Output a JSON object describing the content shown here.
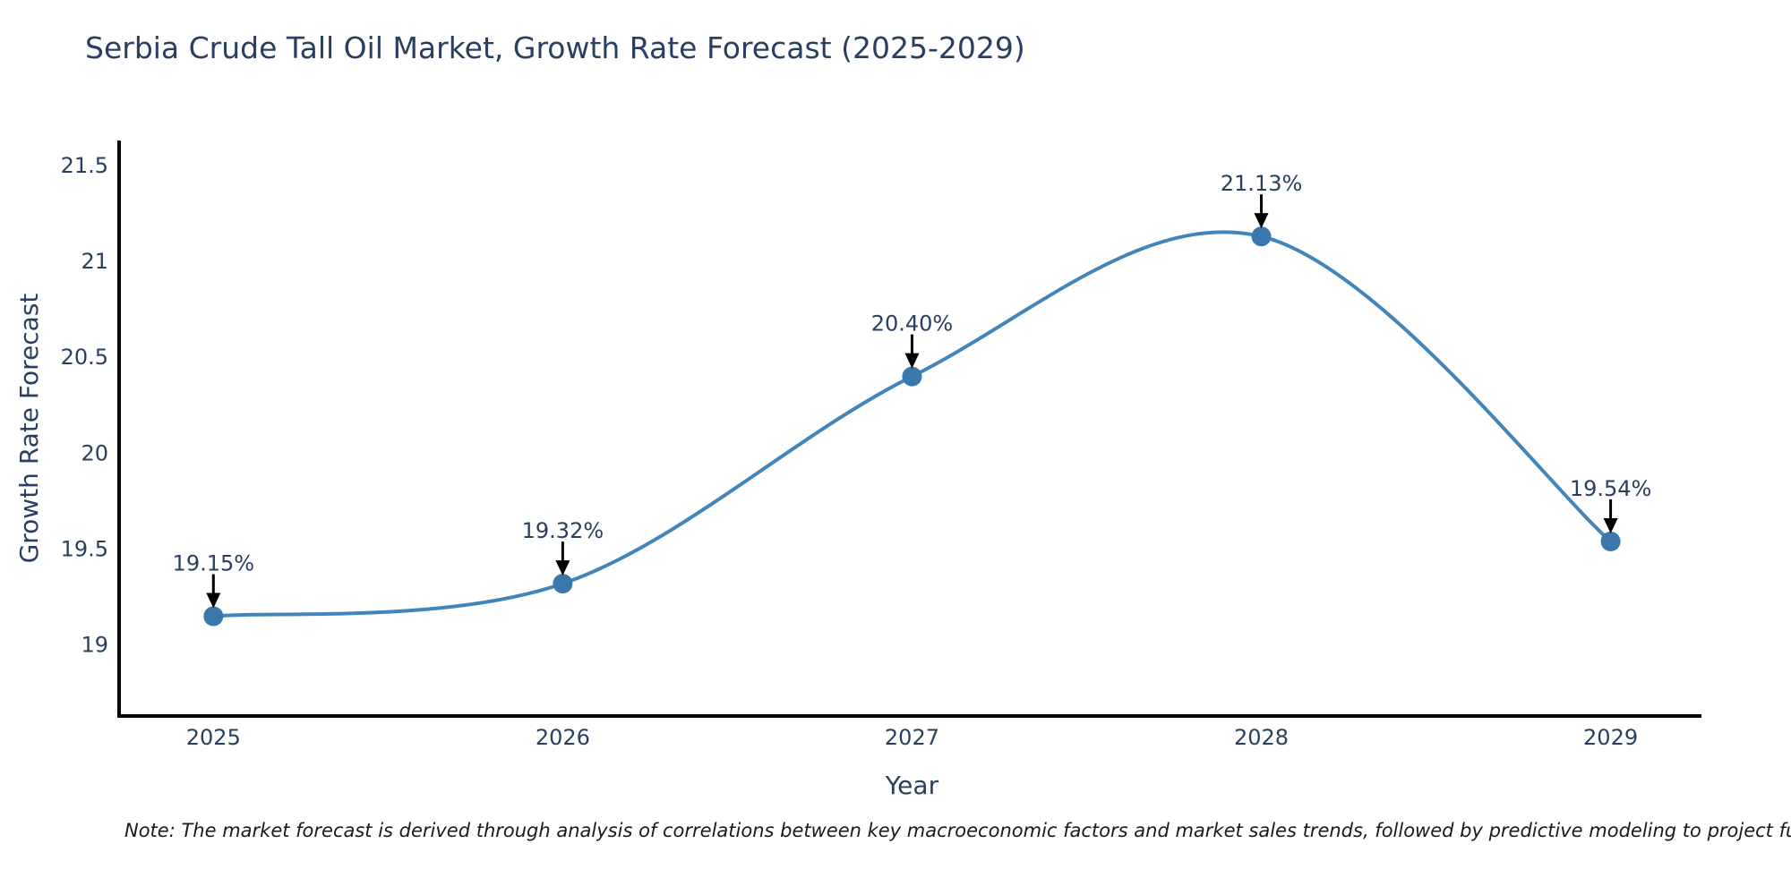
{
  "header": {
    "title": "Serbia Crude Tall Oil Market, Growth Rate Forecast (2025-2029)"
  },
  "footer": {
    "note": "Note: The market forecast is derived through analysis of correlations between key macroeconomic factors and market sales trends, followed by predictive modeling to project future sal"
  },
  "chart_data": {
    "type": "line",
    "title": "Serbia Crude Tall Oil Market, Growth Rate Forecast (2025-2029)",
    "xlabel": "Year",
    "ylabel": "Growth Rate Forecast",
    "x": [
      2025,
      2026,
      2027,
      2028,
      2029
    ],
    "series": [
      {
        "name": "Growth Rate Forecast",
        "values": [
          19.15,
          19.32,
          20.4,
          21.13,
          19.54
        ]
      }
    ],
    "point_labels": [
      "19.15%",
      "19.32%",
      "20.40%",
      "21.13%",
      "19.54%"
    ],
    "x_ticks": [
      2025,
      2026,
      2027,
      2028,
      2029
    ],
    "y_ticks": [
      19,
      19.5,
      20,
      20.5,
      21,
      21.5
    ],
    "xlim": [
      2024.73,
      2029.26
    ],
    "ylim": [
      18.63,
      21.63
    ],
    "grid": false,
    "legend": "none",
    "line_shape": "spline",
    "colors": {
      "line": "#4285bb",
      "marker": "#3a78ab",
      "arrow": "#000000",
      "axis": "#000000",
      "text": "#2a3f5f",
      "note_text": "#1a1a1a"
    }
  }
}
